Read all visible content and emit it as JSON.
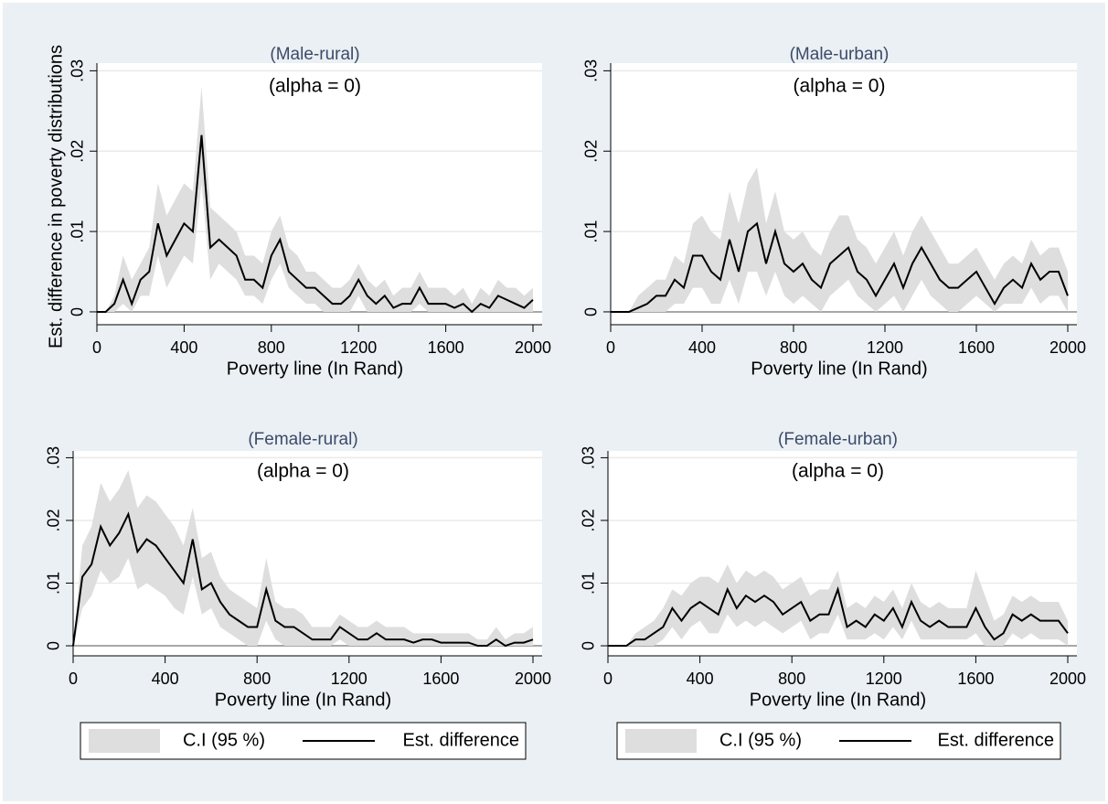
{
  "chart_data": [
    {
      "type": "line",
      "title": "(Male-rural)",
      "subtitle": "(alpha = 0)",
      "xlabel": "Poverty line (In Rand)",
      "ylabel": "Est. difference in poverty distributions",
      "x": [
        0,
        40,
        80,
        120,
        160,
        200,
        240,
        280,
        320,
        360,
        400,
        440,
        480,
        520,
        560,
        600,
        640,
        680,
        720,
        760,
        800,
        840,
        880,
        920,
        960,
        1000,
        1040,
        1080,
        1120,
        1160,
        1200,
        1240,
        1280,
        1320,
        1360,
        1400,
        1440,
        1480,
        1520,
        1560,
        1600,
        1640,
        1680,
        1720,
        1760,
        1800,
        1840,
        1880,
        1920,
        1960,
        2000
      ],
      "series": [
        {
          "name": "C.I (95 %)",
          "color": "#dedede",
          "upper": [
            0,
            0,
            0.002,
            0.007,
            0.004,
            0.006,
            0.008,
            0.016,
            0.012,
            0.014,
            0.016,
            0.015,
            0.028,
            0.013,
            0.012,
            0.011,
            0.01,
            0.007,
            0.007,
            0.006,
            0.01,
            0.012,
            0.008,
            0.007,
            0.005,
            0.005,
            0.004,
            0.003,
            0.003,
            0.004,
            0.006,
            0.004,
            0.003,
            0.004,
            0.002,
            0.003,
            0.003,
            0.005,
            0.003,
            0.003,
            0.003,
            0.002,
            0.003,
            0.001,
            0.003,
            0.002,
            0.004,
            0.003,
            0.003,
            0.002,
            0.003
          ],
          "lower": [
            0,
            0,
            0,
            0.001,
            0,
            0.002,
            0.002,
            0.007,
            0.003,
            0.005,
            0.007,
            0.006,
            0.016,
            0.004,
            0.006,
            0.005,
            0.004,
            0.002,
            0.002,
            0.001,
            0.004,
            0.006,
            0.003,
            0.002,
            0.001,
            0.001,
            0,
            0,
            0,
            0,
            0.002,
            0,
            0,
            0,
            0,
            0,
            0,
            0.001,
            0,
            0,
            0,
            0,
            0,
            0,
            0,
            0,
            0,
            0,
            0,
            0,
            0
          ]
        },
        {
          "name": "Est. difference",
          "color": "#000000",
          "values": [
            0,
            0,
            0.001,
            0.004,
            0.001,
            0.004,
            0.005,
            0.011,
            0.007,
            0.009,
            0.011,
            0.01,
            0.022,
            0.008,
            0.009,
            0.008,
            0.007,
            0.004,
            0.004,
            0.003,
            0.007,
            0.009,
            0.005,
            0.004,
            0.003,
            0.003,
            0.002,
            0.001,
            0.001,
            0.002,
            0.004,
            0.002,
            0.001,
            0.002,
            0.0005,
            0.001,
            0.001,
            0.003,
            0.001,
            0.001,
            0.001,
            0.0005,
            0.001,
            0,
            0.001,
            0.0005,
            0.002,
            0.0015,
            0.001,
            0.0005,
            0.0015
          ]
        }
      ],
      "xlim": [
        0,
        2000
      ],
      "xticks": [
        0,
        400,
        800,
        1200,
        1600,
        2000
      ],
      "ylim": [
        -0.0016,
        0.0305
      ],
      "yticks": [
        0,
        {
          "value": 0.01,
          "label": ".01"
        },
        {
          "value": 0.02,
          "label": ".02"
        },
        {
          "value": 0.03,
          "label": ".03"
        }
      ],
      "grid": true
    },
    {
      "type": "line",
      "title": "(Male-urban)",
      "subtitle": "(alpha = 0)",
      "xlabel": "Poverty line (In Rand)",
      "x": [
        0,
        40,
        80,
        120,
        160,
        200,
        240,
        280,
        320,
        360,
        400,
        440,
        480,
        520,
        560,
        600,
        640,
        680,
        720,
        760,
        800,
        840,
        880,
        920,
        960,
        1000,
        1040,
        1080,
        1120,
        1160,
        1200,
        1240,
        1280,
        1320,
        1360,
        1400,
        1440,
        1480,
        1520,
        1560,
        1600,
        1640,
        1680,
        1720,
        1760,
        1800,
        1840,
        1880,
        1920,
        1960,
        2000
      ],
      "series": [
        {
          "name": "C.I (95 %)",
          "color": "#dedede",
          "upper": [
            0,
            0,
            0,
            0.002,
            0.003,
            0.004,
            0.004,
            0.007,
            0.006,
            0.011,
            0.012,
            0.01,
            0.009,
            0.015,
            0.011,
            0.016,
            0.018,
            0.011,
            0.015,
            0.01,
            0.009,
            0.01,
            0.008,
            0.007,
            0.01,
            0.012,
            0.012,
            0.009,
            0.008,
            0.006,
            0.008,
            0.01,
            0.007,
            0.01,
            0.012,
            0.01,
            0.008,
            0.006,
            0.006,
            0.007,
            0.008,
            0.006,
            0.004,
            0.006,
            0.007,
            0.006,
            0.009,
            0.007,
            0.008,
            0.008,
            0.005
          ],
          "lower": [
            0,
            0,
            0,
            0,
            0,
            0,
            0,
            0.001,
            0.001,
            0.003,
            0.003,
            0.001,
            0.001,
            0.004,
            0.001,
            0.005,
            0.005,
            0.002,
            0.005,
            0.002,
            0.001,
            0.002,
            0.001,
            0,
            0.002,
            0.003,
            0.004,
            0.002,
            0.001,
            0,
            0.001,
            0.002,
            0,
            0.002,
            0.004,
            0.002,
            0.001,
            0,
            0,
            0.001,
            0.002,
            0.001,
            0,
            0.001,
            0.001,
            0.001,
            0.003,
            0.001,
            0.002,
            0.002,
            0
          ]
        },
        {
          "name": "Est. difference",
          "color": "#000000",
          "values": [
            0,
            0,
            0,
            0.0005,
            0.001,
            0.002,
            0.002,
            0.004,
            0.003,
            0.007,
            0.007,
            0.005,
            0.004,
            0.009,
            0.005,
            0.01,
            0.011,
            0.006,
            0.01,
            0.006,
            0.005,
            0.006,
            0.004,
            0.003,
            0.006,
            0.007,
            0.008,
            0.005,
            0.004,
            0.002,
            0.004,
            0.006,
            0.003,
            0.006,
            0.008,
            0.006,
            0.004,
            0.003,
            0.003,
            0.004,
            0.005,
            0.003,
            0.001,
            0.003,
            0.004,
            0.003,
            0.006,
            0.004,
            0.005,
            0.005,
            0.002
          ]
        }
      ],
      "xlim": [
        0,
        2000
      ],
      "xticks": [
        0,
        400,
        800,
        1200,
        1600,
        2000
      ],
      "ylim": [
        -0.0016,
        0.0305
      ],
      "yticks": [
        0,
        {
          "value": 0.01,
          "label": ".01"
        },
        {
          "value": 0.02,
          "label": ".02"
        },
        {
          "value": 0.03,
          "label": ".03"
        }
      ],
      "grid": true
    },
    {
      "type": "line",
      "title": "(Female-rural)",
      "subtitle": "(alpha = 0)",
      "xlabel": "Poverty line (In Rand)",
      "legend": "bottom",
      "x": [
        0,
        40,
        80,
        120,
        160,
        200,
        240,
        280,
        320,
        360,
        400,
        440,
        480,
        520,
        560,
        600,
        640,
        680,
        720,
        760,
        800,
        840,
        880,
        920,
        960,
        1000,
        1040,
        1080,
        1120,
        1160,
        1200,
        1240,
        1280,
        1320,
        1360,
        1400,
        1440,
        1480,
        1520,
        1560,
        1600,
        1640,
        1680,
        1720,
        1760,
        1800,
        1840,
        1880,
        1920,
        1960,
        2000
      ],
      "series": [
        {
          "name": "C.I (95 %)",
          "color": "#dedede",
          "upper": [
            0,
            0.016,
            0.019,
            0.026,
            0.023,
            0.025,
            0.028,
            0.022,
            0.024,
            0.023,
            0.021,
            0.019,
            0.016,
            0.022,
            0.014,
            0.015,
            0.011,
            0.009,
            0.008,
            0.007,
            0.006,
            0.014,
            0.007,
            0.006,
            0.006,
            0.005,
            0.003,
            0.003,
            0.003,
            0.005,
            0.004,
            0.003,
            0.003,
            0.004,
            0.003,
            0.003,
            0.003,
            0.002,
            0.002,
            0.002,
            0.002,
            0.002,
            0.002,
            0.002,
            0.001,
            0.001,
            0.003,
            0.001,
            0.002,
            0.002,
            0.003
          ],
          "lower": [
            0,
            0.006,
            0.008,
            0.012,
            0.01,
            0.011,
            0.014,
            0.009,
            0.01,
            0.009,
            0.008,
            0.006,
            0.005,
            0.011,
            0.005,
            0.006,
            0.003,
            0.002,
            0.001,
            0,
            0,
            0.004,
            0.001,
            0,
            0,
            0,
            0,
            0,
            0,
            0.001,
            0,
            0,
            0,
            0,
            0,
            0,
            0,
            0,
            0,
            0,
            0,
            0,
            0,
            0,
            0,
            0,
            0,
            0,
            0,
            0,
            0
          ]
        },
        {
          "name": "Est. difference",
          "color": "#000000",
          "values": [
            0,
            0.011,
            0.013,
            0.019,
            0.016,
            0.018,
            0.021,
            0.015,
            0.017,
            0.016,
            0.014,
            0.012,
            0.01,
            0.017,
            0.009,
            0.01,
            0.007,
            0.005,
            0.004,
            0.003,
            0.003,
            0.009,
            0.004,
            0.003,
            0.003,
            0.002,
            0.001,
            0.001,
            0.001,
            0.003,
            0.002,
            0.001,
            0.001,
            0.002,
            0.001,
            0.001,
            0.001,
            0.0005,
            0.001,
            0.001,
            0.0005,
            0.0005,
            0.0005,
            0.0005,
            0,
            0,
            0.001,
            0,
            0.0005,
            0.0005,
            0.001
          ]
        }
      ],
      "xlim": [
        0,
        2000
      ],
      "xticks": [
        0,
        400,
        800,
        1200,
        1600,
        2000
      ],
      "ylim": [
        -0.0016,
        0.0305
      ],
      "yticks": [
        0,
        {
          "value": 0.01,
          "label": ".01"
        },
        {
          "value": 0.02,
          "label": ".02"
        },
        {
          "value": 0.03,
          "label": ".03"
        }
      ],
      "grid": true
    },
    {
      "type": "line",
      "title": "(Female-urban)",
      "subtitle": "(alpha = 0)",
      "xlabel": "Poverty line (In Rand)",
      "legend": "bottom",
      "x": [
        0,
        40,
        80,
        120,
        160,
        200,
        240,
        280,
        320,
        360,
        400,
        440,
        480,
        520,
        560,
        600,
        640,
        680,
        720,
        760,
        800,
        840,
        880,
        920,
        960,
        1000,
        1040,
        1080,
        1120,
        1160,
        1200,
        1240,
        1280,
        1320,
        1360,
        1400,
        1440,
        1480,
        1520,
        1560,
        1600,
        1640,
        1680,
        1720,
        1760,
        1800,
        1840,
        1880,
        1920,
        1960,
        2000
      ],
      "series": [
        {
          "name": "C.I (95 %)",
          "color": "#dedede",
          "upper": [
            0,
            0,
            0,
            0.002,
            0.003,
            0.004,
            0.006,
            0.009,
            0.008,
            0.01,
            0.011,
            0.011,
            0.01,
            0.013,
            0.01,
            0.012,
            0.011,
            0.012,
            0.011,
            0.009,
            0.01,
            0.011,
            0.008,
            0.009,
            0.009,
            0.012,
            0.006,
            0.007,
            0.006,
            0.008,
            0.007,
            0.009,
            0.006,
            0.01,
            0.007,
            0.006,
            0.007,
            0.006,
            0.006,
            0.006,
            0.012,
            0.008,
            0.004,
            0.005,
            0.008,
            0.007,
            0.008,
            0.007,
            0.007,
            0.007,
            0.004
          ],
          "lower": [
            0,
            0,
            0,
            0,
            0,
            0,
            0.001,
            0.003,
            0.001,
            0.003,
            0.004,
            0.002,
            0.002,
            0.005,
            0.003,
            0.004,
            0.003,
            0.004,
            0.003,
            0.002,
            0.003,
            0.004,
            0.001,
            0.002,
            0.002,
            0.005,
            0.001,
            0.001,
            0.001,
            0.002,
            0.001,
            0.003,
            0.001,
            0.004,
            0.001,
            0.001,
            0.001,
            0.001,
            0.001,
            0.001,
            0.002,
            0,
            0,
            0,
            0.002,
            0.001,
            0.002,
            0.001,
            0.001,
            0.001,
            0
          ]
        },
        {
          "name": "Est. difference",
          "color": "#000000",
          "values": [
            0,
            0,
            0,
            0.001,
            0.001,
            0.002,
            0.003,
            0.006,
            0.004,
            0.006,
            0.007,
            0.006,
            0.005,
            0.009,
            0.006,
            0.008,
            0.007,
            0.008,
            0.007,
            0.005,
            0.006,
            0.007,
            0.004,
            0.005,
            0.005,
            0.009,
            0.003,
            0.004,
            0.003,
            0.005,
            0.004,
            0.006,
            0.003,
            0.007,
            0.004,
            0.003,
            0.004,
            0.003,
            0.003,
            0.003,
            0.006,
            0.003,
            0.001,
            0.002,
            0.005,
            0.004,
            0.005,
            0.004,
            0.004,
            0.004,
            0.002
          ]
        }
      ],
      "xlim": [
        0,
        2000
      ],
      "xticks": [
        0,
        400,
        800,
        1200,
        1600,
        2000
      ],
      "ylim": [
        -0.0016,
        0.0305
      ],
      "yticks": [
        0,
        {
          "value": 0.01,
          "label": ".01"
        },
        {
          "value": 0.02,
          "label": ".02"
        },
        {
          "value": 0.03,
          "label": ".03"
        }
      ],
      "grid": true
    }
  ]
}
